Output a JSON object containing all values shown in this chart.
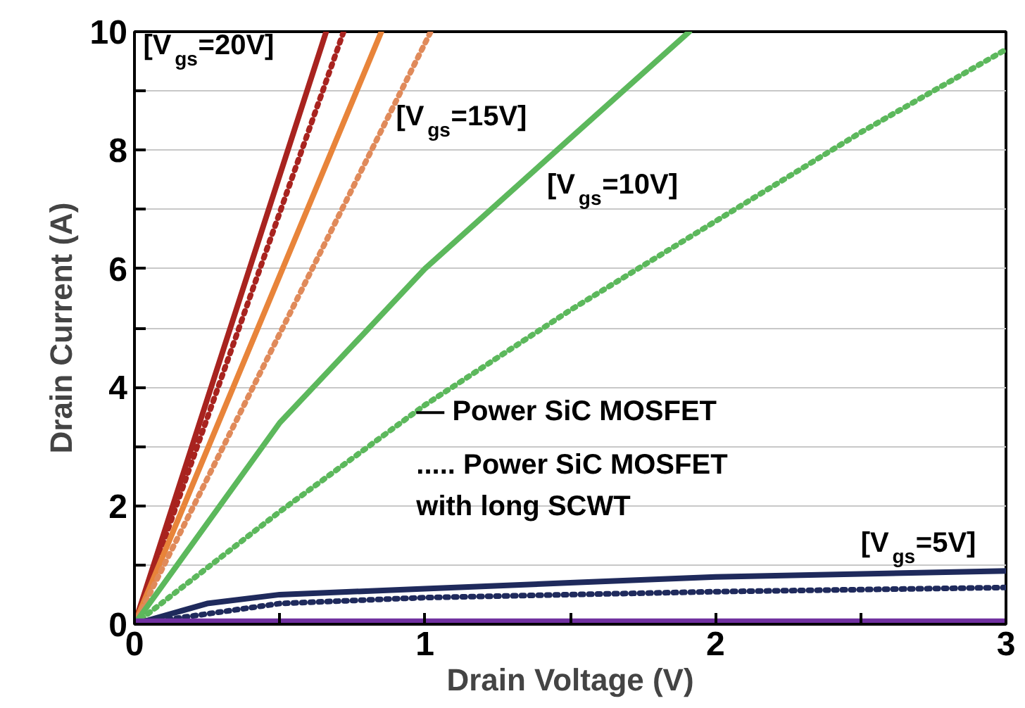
{
  "chart_data": {
    "type": "line",
    "xlabel": "Drain Voltage (V)",
    "ylabel": "Drain Current (A)",
    "xlim": [
      0,
      3
    ],
    "ylim": [
      0,
      10
    ],
    "xticks": [
      0,
      {
        "value": 0.5,
        "label": null
      },
      1,
      {
        "value": 1.5,
        "label": null
      },
      2,
      {
        "value": 2.5,
        "label": null
      },
      3
    ],
    "yticks": [
      0,
      {
        "value": 1,
        "label": null
      },
      2,
      {
        "value": 3,
        "label": null
      },
      4,
      {
        "value": 5,
        "label": null
      },
      6,
      {
        "value": 7,
        "label": null
      },
      8,
      {
        "value": 9,
        "label": null
      },
      10
    ],
    "grid": "y",
    "marker": "none",
    "series": [
      {
        "color": "#a8231f",
        "line_style": "solid",
        "x": [
          0,
          0.66
        ],
        "values": [
          0,
          10
        ]
      },
      {
        "color": "#a8231f",
        "line_style": "dotted",
        "x": [
          0,
          0.72
        ],
        "values": [
          0,
          10
        ]
      },
      {
        "color": "#e8843a",
        "line_style": "solid",
        "x": [
          0,
          0.85
        ],
        "values": [
          0,
          10
        ]
      },
      {
        "color": "#e08a5a",
        "line_style": "dotted",
        "x": [
          0,
          1.02
        ],
        "values": [
          0,
          10
        ]
      },
      {
        "color": "#5cb85c",
        "line_style": "solid",
        "x": [
          0,
          0.5,
          1,
          1.5,
          1.91
        ],
        "values": [
          0,
          3.4,
          6.0,
          8.2,
          10
        ]
      },
      {
        "color": "#5cb85c",
        "line_style": "dotted",
        "x": [
          0,
          0.5,
          1,
          1.5,
          2,
          2.5,
          3
        ],
        "values": [
          0,
          1.9,
          3.7,
          5.3,
          6.8,
          8.3,
          9.7
        ]
      },
      {
        "color": "#1f2a5c",
        "line_style": "solid",
        "x": [
          0,
          0.25,
          0.5,
          1,
          1.5,
          2,
          3
        ],
        "values": [
          0,
          0.35,
          0.5,
          0.6,
          0.7,
          0.8,
          0.9
        ]
      },
      {
        "color": "#1f2a5c",
        "line_style": "dotted",
        "x": [
          0,
          0.5,
          1,
          2,
          3
        ],
        "values": [
          0,
          0.35,
          0.45,
          0.55,
          0.62
        ]
      },
      {
        "color": "#7030a0",
        "line_style": "solid",
        "x": [
          0,
          3
        ],
        "values": [
          0.05,
          0.05
        ]
      }
    ],
    "annotations": [
      "[V$_{gs}$=20V]",
      "[V$_{gs}$=15V]",
      "[V$_{gs}$=10V]",
      "[V$_{gs}$=5V]",
      "— Power SiC MOSFET",
      "..... Power SiC MOSFET\nwith long SCWT"
    ]
  }
}
